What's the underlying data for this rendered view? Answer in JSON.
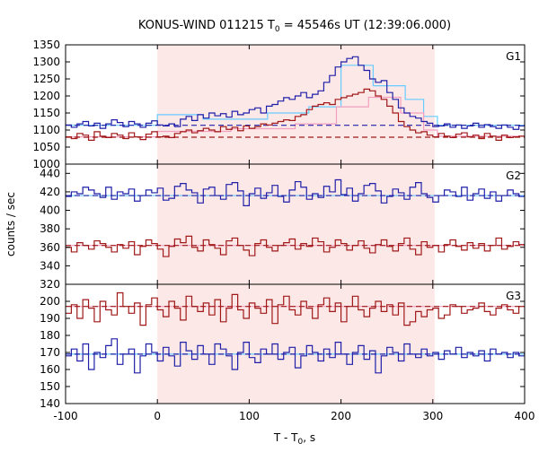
{
  "chart_data": {
    "type": "line",
    "title": "KONUS-WIND 011215 T",
    "title_sub": "0",
    "title_tail": " = 45546s UT (12:39:06.000)",
    "xlabel": "T - T",
    "xlabel_sub": "0",
    "xlabel_tail": ", s",
    "ylabel": "counts / sec",
    "xlim": [
      -100,
      400
    ],
    "x_ticks": [
      -100,
      0,
      100,
      200,
      300,
      400
    ],
    "highlight_interval": [
      0,
      302
    ],
    "colors": {
      "blue": "#1f1fa8",
      "red": "#a01818",
      "cyan": "#66ccff",
      "pink": "#f2a0c0",
      "shade": "#fde8e8"
    },
    "panels": [
      {
        "name": "G1",
        "ylim": [
          1000,
          1350
        ],
        "y_ticks": [
          1000,
          1050,
          1100,
          1150,
          1200,
          1250,
          1300,
          1350
        ],
        "baselines": [
          {
            "series": "blue",
            "y": 1114
          },
          {
            "series": "red",
            "y": 1079
          }
        ],
        "series": [
          {
            "color": "blue",
            "values": [
              1115,
              1108,
              1118,
              1125,
              1112,
              1120,
              1105,
              1118,
              1130,
              1122,
              1110,
              1125,
              1118,
              1108,
              1120,
              1127,
              1115,
              1112,
              1118,
              1110,
              1132,
              1140,
              1128,
              1145,
              1135,
              1150,
              1142,
              1148,
              1138,
              1155,
              1145,
              1150,
              1160,
              1165,
              1150,
              1170,
              1175,
              1185,
              1195,
              1190,
              1200,
              1210,
              1195,
              1205,
              1215,
              1240,
              1260,
              1285,
              1300,
              1310,
              1315,
              1290,
              1275,
              1250,
              1240,
              1245,
              1210,
              1190,
              1165,
              1150,
              1140,
              1135,
              1125,
              1120,
              1110,
              1112,
              1118,
              1108,
              1115,
              1105,
              1112,
              1120,
              1108,
              1116,
              1110,
              1105,
              1115,
              1108,
              1102,
              1112
            ]
          },
          {
            "color": "red",
            "values": [
              1080,
              1075,
              1090,
              1085,
              1070,
              1095,
              1082,
              1078,
              1090,
              1085,
              1075,
              1092,
              1080,
              1072,
              1088,
              1095,
              1080,
              1082,
              1078,
              1090,
              1095,
              1100,
              1092,
              1098,
              1105,
              1100,
              1095,
              1110,
              1102,
              1108,
              1098,
              1112,
              1105,
              1110,
              1118,
              1115,
              1120,
              1125,
              1130,
              1128,
              1140,
              1145,
              1160,
              1170,
              1175,
              1180,
              1175,
              1190,
              1195,
              1200,
              1205,
              1210,
              1220,
              1215,
              1200,
              1190,
              1170,
              1150,
              1125,
              1110,
              1100,
              1092,
              1095,
              1085,
              1080,
              1090,
              1082,
              1078,
              1088,
              1092,
              1080,
              1085,
              1075,
              1090,
              1082,
              1070,
              1085,
              1078,
              1080,
              1082
            ]
          },
          {
            "color": "cyan",
            "type": "model",
            "points": [
              [
                -100,
                1114
              ],
              [
                0,
                1114
              ],
              [
                0,
                1145
              ],
              [
                50,
                1145
              ],
              [
                50,
                1132
              ],
              [
                120,
                1132
              ],
              [
                120,
                1150
              ],
              [
                165,
                1150
              ],
              [
                165,
                1168
              ],
              [
                200,
                1168
              ],
              [
                200,
                1290
              ],
              [
                235,
                1290
              ],
              [
                235,
                1230
              ],
              [
                270,
                1230
              ],
              [
                270,
                1190
              ],
              [
                290,
                1190
              ],
              [
                290,
                1140
              ],
              [
                305,
                1140
              ],
              [
                305,
                1114
              ],
              [
                400,
                1114
              ]
            ]
          },
          {
            "color": "pink",
            "type": "model",
            "points": [
              [
                -100,
                1080
              ],
              [
                0,
                1080
              ],
              [
                0,
                1096
              ],
              [
                80,
                1096
              ],
              [
                80,
                1104
              ],
              [
                150,
                1104
              ],
              [
                150,
                1118
              ],
              [
                195,
                1118
              ],
              [
                195,
                1168
              ],
              [
                230,
                1168
              ],
              [
                230,
                1196
              ],
              [
                265,
                1196
              ],
              [
                265,
                1150
              ],
              [
                290,
                1150
              ],
              [
                290,
                1100
              ],
              [
                305,
                1100
              ],
              [
                305,
                1082
              ],
              [
                400,
                1082
              ]
            ]
          }
        ]
      },
      {
        "name": "G2",
        "ylim": [
          320,
          450
        ],
        "y_ticks": [
          320,
          340,
          360,
          380,
          400,
          420,
          440
        ],
        "baselines": [
          {
            "series": "blue",
            "y": 416
          },
          {
            "series": "red",
            "y": 362
          }
        ],
        "series": [
          {
            "color": "blue",
            "values": [
              415,
              420,
              418,
              425,
              422,
              418,
              414,
              425,
              412,
              420,
              418,
              423,
              410,
              416,
              422,
              419,
              424,
              411,
              413,
              426,
              429,
              422,
              419,
              408,
              423,
              425,
              416,
              412,
              428,
              430,
              421,
              405,
              418,
              424,
              413,
              419,
              427,
              415,
              409,
              422,
              431,
              425,
              412,
              418,
              414,
              426,
              420,
              433,
              417,
              424,
              410,
              418,
              427,
              429,
              421,
              408,
              415,
              423,
              419,
              412,
              425,
              430,
              418,
              414,
              409,
              416,
              422,
              420,
              415,
              425,
              411,
              418,
              423,
              413,
              420,
              410,
              416,
              422,
              418,
              415
            ]
          },
          {
            "color": "red",
            "values": [
              360,
              355,
              365,
              362,
              358,
              367,
              364,
              360,
              355,
              363,
              359,
              366,
              352,
              361,
              368,
              364,
              358,
              350,
              361,
              369,
              365,
              372,
              360,
              356,
              368,
              363,
              359,
              352,
              367,
              370,
              362,
              357,
              351,
              364,
              368,
              360,
              356,
              362,
              365,
              369,
              358,
              364,
              361,
              370,
              366,
              355,
              360,
              368,
              364,
              357,
              362,
              367,
              359,
              354,
              363,
              368,
              361,
              356,
              364,
              370,
              358,
              352,
              366,
              360,
              362,
              355,
              363,
              368,
              361,
              357,
              365,
              359,
              364,
              356,
              362,
              370,
              358,
              361,
              366,
              363
            ]
          },
          {
            "color": "cyan",
            "type": "model",
            "points": [
              [
                -100,
                416
              ],
              [
                400,
                416
              ]
            ]
          },
          {
            "color": "pink",
            "type": "model",
            "points": [
              [
                -100,
                362
              ],
              [
                400,
                362
              ]
            ]
          }
        ]
      },
      {
        "name": "G3",
        "ylim": [
          140,
          210
        ],
        "y_ticks": [
          140,
          150,
          160,
          170,
          180,
          190,
          200
        ],
        "baselines": [
          {
            "series": "blue",
            "y": 169
          },
          {
            "series": "red",
            "y": 197
          }
        ],
        "series": [
          {
            "color": "blue",
            "values": [
              168,
              172,
              165,
              175,
              160,
              170,
              167,
              174,
              178,
              163,
              169,
              172,
              158,
              168,
              175,
              170,
              165,
              173,
              168,
              162,
              176,
              171,
              166,
              174,
              169,
              163,
              175,
              172,
              168,
              160,
              170,
              176,
              167,
              164,
              172,
              169,
              175,
              166,
              170,
              173,
              161,
              168,
              174,
              170,
              165,
              172,
              167,
              176,
              169,
              163,
              170,
              174,
              166,
              171,
              158,
              168,
              173,
              170,
              165,
              175,
              169,
              167,
              172,
              168,
              170,
              166,
              171,
              169,
              173,
              167,
              170,
              168,
              171,
              165,
              172,
              169,
              170,
              167,
              170,
              168
            ]
          },
          {
            "color": "red",
            "values": [
              193,
              198,
              190,
              201,
              196,
              188,
              200,
              195,
              192,
              205,
              197,
              193,
              199,
              186,
              198,
              202,
              195,
              191,
              200,
              196,
              189,
              203,
              197,
              194,
              199,
              192,
              201,
              188,
              196,
              204,
              195,
              190,
              199,
              196,
              193,
              201,
              187,
              198,
              203,
              195,
              192,
              200,
              196,
              190,
              198,
              202,
              194,
              199,
              188,
              197,
              203,
              195,
              191,
              196,
              200,
              194,
              198,
              192,
              199,
              186,
              188,
              194,
              191,
              195,
              196,
              190,
              192,
              198,
              197,
              193,
              195,
              196,
              199,
              194,
              192,
              196,
              198,
              195,
              193,
              197
            ]
          },
          {
            "color": "cyan",
            "type": "model",
            "points": [
              [
                -100,
                169
              ],
              [
                400,
                169
              ]
            ]
          },
          {
            "color": "pink",
            "type": "model",
            "points": [
              [
                -100,
                197
              ],
              [
                400,
                197
              ]
            ]
          }
        ]
      }
    ]
  }
}
